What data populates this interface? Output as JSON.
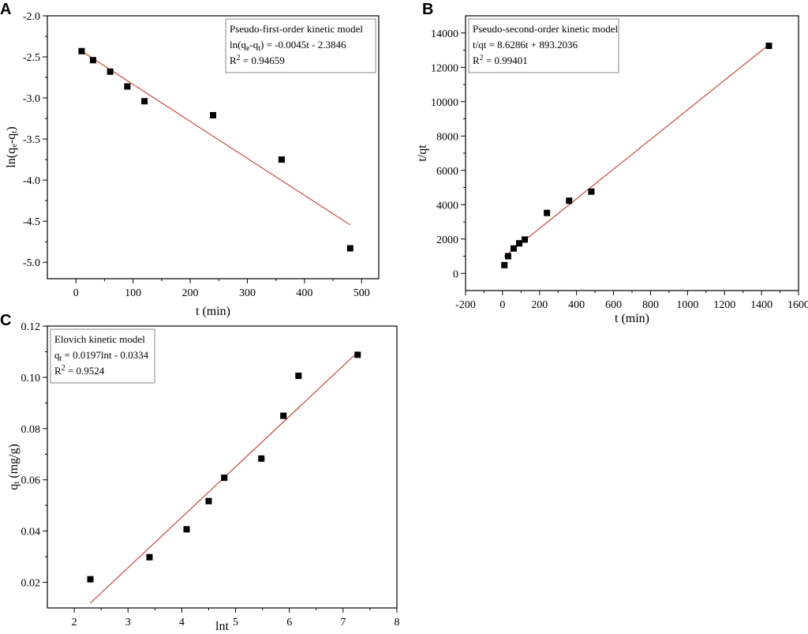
{
  "chart_data": [
    {
      "panel": "A",
      "type": "scatter",
      "title": "",
      "xlabel": "t (min)",
      "ylabel": {
        "main": "ln(q",
        "sub1": "e",
        "mid": "-q",
        "sub2": "t",
        "end": ")"
      },
      "xlim": [
        -50,
        530
      ],
      "ylim": [
        -5.2,
        -2.0
      ],
      "xticks": [
        0,
        100,
        200,
        300,
        400,
        500
      ],
      "yticks": [
        -2.0,
        -2.5,
        -3.0,
        -3.5,
        -4.0,
        -4.5,
        -5.0
      ],
      "ytick_decimals": 1,
      "points": {
        "x": [
          10,
          30,
          60,
          90,
          120,
          240,
          360,
          480
        ],
        "y": [
          -2.43,
          -2.54,
          -2.68,
          -2.86,
          -3.04,
          -3.21,
          -3.75,
          -4.83
        ]
      },
      "fit_line": {
        "x": [
          10,
          480
        ],
        "y": [
          -2.43,
          -4.545
        ],
        "color": "#c0392b"
      },
      "marker_color": "#000000",
      "legend_position": "top-right",
      "legend": [
        [
          {
            "t": "Pseudo-first-order kinetic model"
          }
        ],
        [
          {
            "t": "ln(q"
          },
          {
            "t": "e",
            "s": "sub"
          },
          {
            "t": "-q"
          },
          {
            "t": "t",
            "s": "sub"
          },
          {
            "t": ") = -0.0045t - 2.3846"
          }
        ],
        [
          {
            "t": "R"
          },
          {
            "t": "2",
            "s": "sup"
          },
          {
            "t": " = 0.94659"
          }
        ]
      ]
    },
    {
      "panel": "B",
      "type": "scatter",
      "title": "",
      "xlabel": "t (min)",
      "ylabel": {
        "main": "t/qt"
      },
      "xlim": [
        -200,
        1600
      ],
      "ylim": [
        -1000,
        15000
      ],
      "xticks": [
        -200,
        0,
        200,
        400,
        600,
        800,
        1000,
        1200,
        1400,
        1600
      ],
      "yticks": [
        0,
        2000,
        4000,
        6000,
        8000,
        10000,
        12000,
        14000
      ],
      "ytick_decimals": 0,
      "points": {
        "x": [
          10,
          30,
          60,
          90,
          120,
          240,
          360,
          480,
          1440
        ],
        "y": [
          480,
          1000,
          1450,
          1750,
          1970,
          3520,
          4230,
          4760,
          13250
        ]
      },
      "fit_line": {
        "x": [
          10,
          1440
        ],
        "y": [
          980,
          13320
        ],
        "color": "#c0392b"
      },
      "marker_color": "#000000",
      "legend_position": "top-left",
      "legend": [
        [
          {
            "t": "Pseudo-second-order kinetic model"
          }
        ],
        [
          {
            "t": "t/qt = 8.6286t + 893.2036"
          }
        ],
        [
          {
            "t": "R"
          },
          {
            "t": "2",
            "s": "sup"
          },
          {
            "t": " = 0.99401"
          }
        ]
      ]
    },
    {
      "panel": "C",
      "type": "scatter",
      "title": "",
      "xlabel": "lnt",
      "ylabel": {
        "main": "q",
        "sub1": "t",
        "end": " (mg/g)"
      },
      "xlim": [
        1.5,
        8
      ],
      "ylim": [
        0.01,
        0.12
      ],
      "xticks": [
        2,
        3,
        4,
        5,
        6,
        7,
        8
      ],
      "yticks": [
        0.02,
        0.04,
        0.06,
        0.08,
        0.1,
        0.12
      ],
      "ytick_decimals": 2,
      "points": {
        "x": [
          2.3,
          3.4,
          4.09,
          4.5,
          4.79,
          5.48,
          5.89,
          6.17,
          7.27
        ],
        "y": [
          0.0212,
          0.0298,
          0.0407,
          0.0517,
          0.0608,
          0.0683,
          0.085,
          0.1006,
          0.1088
        ]
      },
      "fit_line": {
        "x": [
          2.3,
          7.27
        ],
        "y": [
          0.0119,
          0.1098
        ],
        "color": "#c0392b"
      },
      "marker_color": "#000000",
      "legend_position": "top-left",
      "legend": [
        [
          {
            "t": "Elovich kinetic model"
          }
        ],
        [
          {
            "t": "q"
          },
          {
            "t": "t",
            "s": "sub"
          },
          {
            "t": " = 0.0197lnt - 0.0334"
          }
        ],
        [
          {
            "t": "R"
          },
          {
            "t": "2",
            "s": "sup"
          },
          {
            "t": " = 0.9524"
          }
        ]
      ]
    }
  ]
}
